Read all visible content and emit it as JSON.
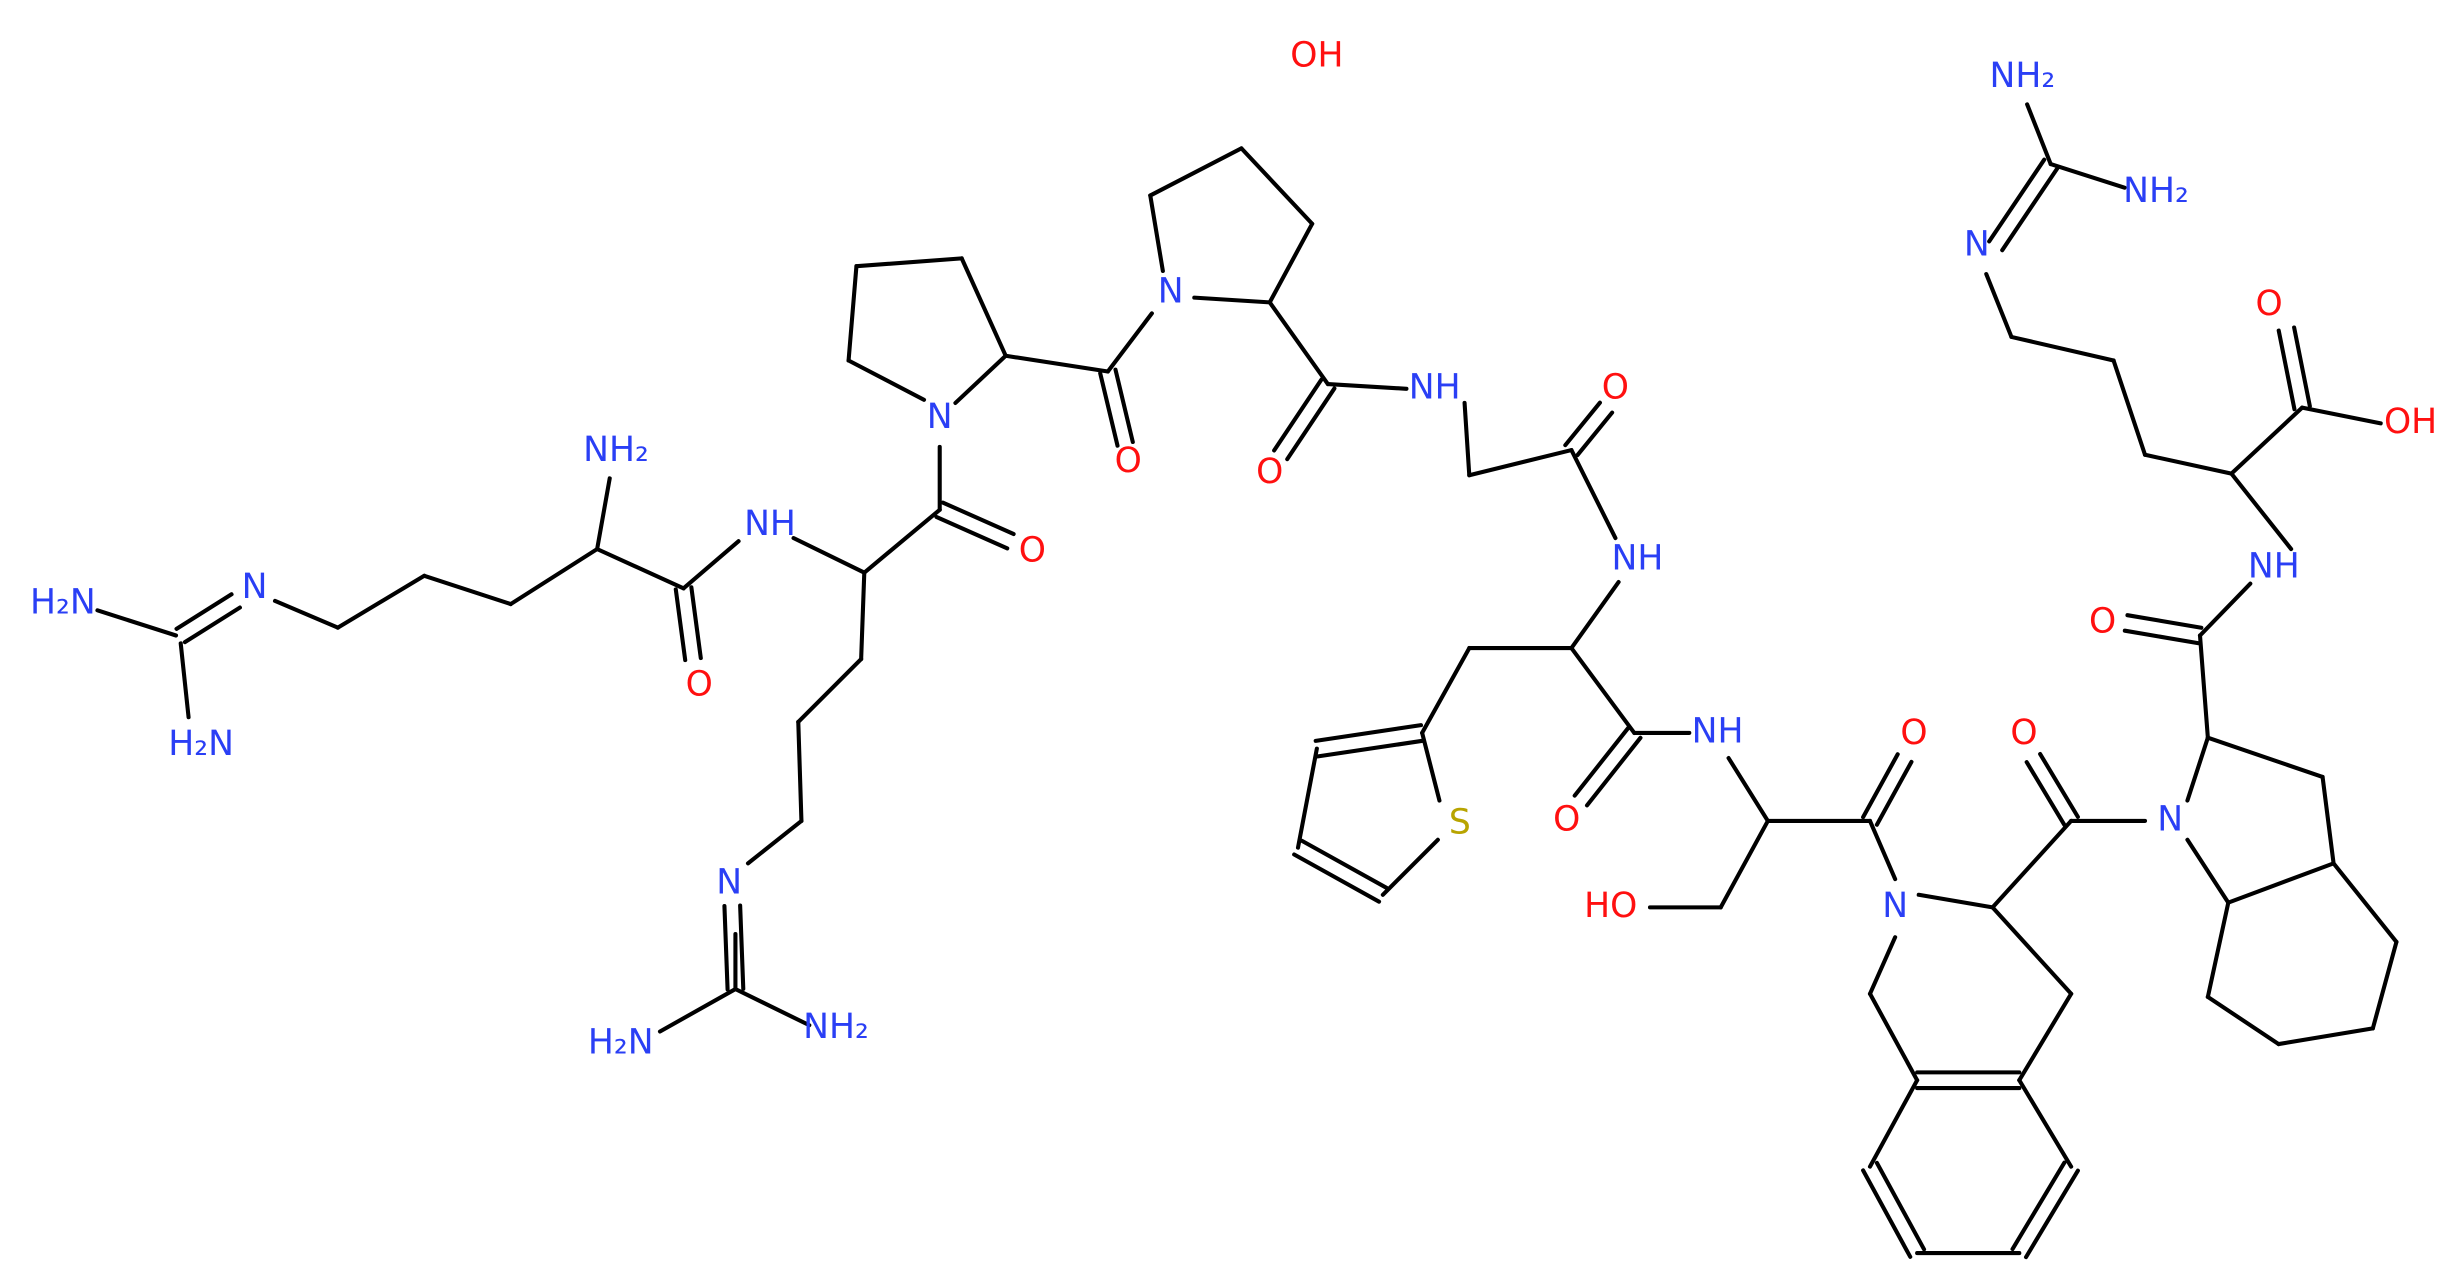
{
  "atom_labels": [
    "H₂N",
    "H₂N",
    "N",
    "NH₂",
    "NH",
    "O",
    "N",
    "O",
    "N",
    "H₂N",
    "NH₂",
    "OH",
    "N",
    "O",
    "O",
    "NH",
    "O",
    "NH",
    "S",
    "O",
    "NH",
    "O",
    "HO",
    "N",
    "O",
    "N",
    "O",
    "NH",
    "OH",
    "O",
    "N",
    "NH₂",
    "NH₂"
  ]
}
